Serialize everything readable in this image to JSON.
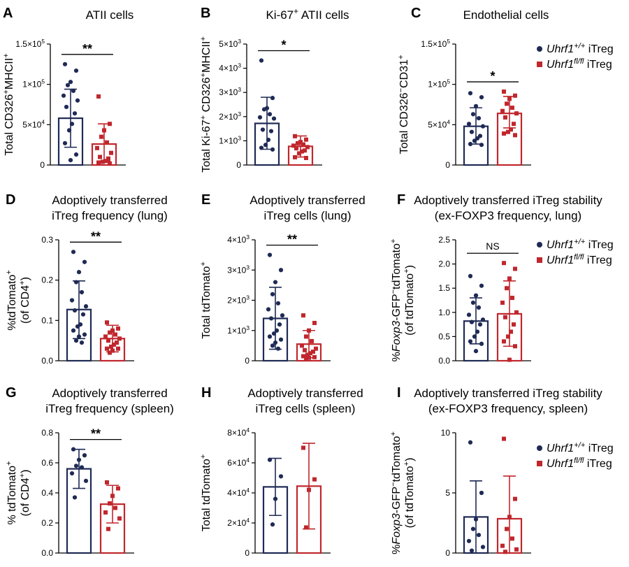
{
  "colors": {
    "wt": "#1f2a55",
    "ko": "#c0272d"
  },
  "legend": {
    "wt": {
      "gene": "Uhrf1",
      "sup": "+/+",
      "suffix": " iTreg"
    },
    "ko": {
      "gene": "Uhrf1",
      "sup": "fl/fl",
      "suffix": " iTreg"
    }
  },
  "chart_data": [
    {
      "id": "A",
      "type": "bar",
      "letter": "A",
      "title": [
        "ATII cells"
      ],
      "ylabel": [
        {
          "t": "Total CD326"
        },
        {
          "t": "+",
          "s": "sup"
        },
        {
          "t": "MHCII"
        },
        {
          "t": "+",
          "s": "sup"
        }
      ],
      "ylim": [
        0,
        150000
      ],
      "ticks": [
        {
          "v": 0,
          "parts": [
            {
              "t": "0"
            }
          ]
        },
        {
          "v": 50000,
          "parts": [
            {
              "t": "5×10"
            },
            {
              "t": "4",
              "s": "sup"
            }
          ]
        },
        {
          "v": 100000,
          "parts": [
            {
              "t": "1×10"
            },
            {
              "t": "5",
              "s": "sup"
            }
          ]
        },
        {
          "v": 150000,
          "parts": [
            {
              "t": "1.5×10"
            },
            {
              "t": "5",
              "s": "sup"
            }
          ]
        }
      ],
      "sig": "**",
      "series": [
        {
          "group": "wt",
          "mean": 58000,
          "err": [
            22000,
            94000
          ],
          "points": [
            125000,
            117000,
            103000,
            99000,
            92000,
            86000,
            80000,
            72000,
            64000,
            51000,
            43000,
            27000,
            13000,
            6000
          ]
        },
        {
          "group": "ko",
          "mean": 26000,
          "err": [
            5000,
            51000
          ],
          "points": [
            85000,
            51000,
            43000,
            35000,
            28000,
            21000,
            15000,
            10000,
            8000,
            5000,
            4000,
            3000,
            2000
          ]
        }
      ]
    },
    {
      "id": "B",
      "type": "bar",
      "letter": "B",
      "title": [
        [
          {
            "t": "Ki-67"
          },
          {
            "t": "+",
            "s": "sup"
          },
          {
            "t": " ATII cells"
          }
        ]
      ],
      "ylabel": [
        {
          "t": "Total Ki-67"
        },
        {
          "t": "+",
          "s": "sup"
        },
        {
          "t": " CD326"
        },
        {
          "t": "+",
          "s": "sup"
        },
        {
          "t": "MHCII"
        },
        {
          "t": "+",
          "s": "sup"
        }
      ],
      "ylim": [
        0,
        5000
      ],
      "ticks": [
        {
          "v": 0,
          "parts": [
            {
              "t": "0"
            }
          ]
        },
        {
          "v": 1000,
          "parts": [
            {
              "t": "1×10"
            },
            {
              "t": "3",
              "s": "sup"
            }
          ]
        },
        {
          "v": 2000,
          "parts": [
            {
              "t": "2×10"
            },
            {
              "t": "3",
              "s": "sup"
            }
          ]
        },
        {
          "v": 3000,
          "parts": [
            {
              "t": "3×10"
            },
            {
              "t": "3",
              "s": "sup"
            }
          ]
        },
        {
          "v": 4000,
          "parts": [
            {
              "t": "4×10"
            },
            {
              "t": "3",
              "s": "sup"
            }
          ]
        },
        {
          "v": 5000,
          "parts": [
            {
              "t": "5×10"
            },
            {
              "t": "3",
              "s": "sup"
            }
          ]
        }
      ],
      "sig": "*",
      "series": [
        {
          "group": "wt",
          "mean": 1720,
          "err": [
            650,
            2800
          ],
          "points": [
            4320,
            2770,
            2350,
            2300,
            2100,
            1970,
            1920,
            1460,
            1400,
            1040,
            830,
            710,
            640
          ]
        },
        {
          "group": "ko",
          "mean": 770,
          "err": [
            330,
            1200
          ],
          "points": [
            1190,
            1050,
            950,
            900,
            850,
            800,
            740,
            690,
            600,
            560,
            480,
            320,
            290
          ]
        }
      ]
    },
    {
      "id": "C",
      "type": "bar",
      "letter": "C",
      "title": [
        "Endothelial cells"
      ],
      "ylabel": [
        {
          "t": "Total CD326"
        },
        {
          "t": "−",
          "s": "sup"
        },
        {
          "t": "CD31"
        },
        {
          "t": "+",
          "s": "sup"
        }
      ],
      "ylim": [
        0,
        150000
      ],
      "ticks": [
        {
          "v": 0,
          "parts": [
            {
              "t": "0"
            }
          ]
        },
        {
          "v": 50000,
          "parts": [
            {
              "t": "5×10"
            },
            {
              "t": "4",
              "s": "sup"
            }
          ]
        },
        {
          "v": 100000,
          "parts": [
            {
              "t": "1×10"
            },
            {
              "t": "5",
              "s": "sup"
            }
          ]
        },
        {
          "v": 150000,
          "parts": [
            {
              "t": "1.5×10"
            },
            {
              "t": "5",
              "s": "sup"
            }
          ]
        }
      ],
      "sig": "*",
      "series": [
        {
          "group": "wt",
          "mean": 48000,
          "err": [
            26000,
            71000
          ],
          "points": [
            89000,
            84000,
            73000,
            63000,
            58000,
            51000,
            48000,
            41000,
            36000,
            33000,
            30000,
            26000,
            25000
          ]
        },
        {
          "group": "ko",
          "mean": 64000,
          "err": [
            46000,
            85000
          ],
          "points": [
            91000,
            86000,
            82000,
            76000,
            71000,
            67000,
            64000,
            59000,
            51000,
            44000,
            41000,
            39000,
            37000
          ]
        }
      ]
    },
    {
      "id": "D",
      "type": "bar",
      "letter": "D",
      "title": [
        "Adoptively transferred",
        "iTreg frequency (lung)"
      ],
      "ylabel2": [
        [
          {
            "t": "%tdTomato"
          },
          {
            "t": "+",
            "s": "sup"
          }
        ],
        [
          {
            "t": "(of CD4"
          },
          {
            "t": "+",
            "s": "sup"
          },
          {
            "t": ")"
          }
        ]
      ],
      "ylim": [
        0,
        0.3
      ],
      "ticks": [
        {
          "v": 0,
          "parts": [
            {
              "t": "0.0"
            }
          ]
        },
        {
          "v": 0.1,
          "parts": [
            {
              "t": "0.1"
            }
          ]
        },
        {
          "v": 0.2,
          "parts": [
            {
              "t": "0.2"
            }
          ]
        },
        {
          "v": 0.3,
          "parts": [
            {
              "t": "0.3"
            }
          ]
        }
      ],
      "sig": "**",
      "series": [
        {
          "group": "wt",
          "mean": 0.127,
          "err": [
            0.055,
            0.198
          ],
          "points": [
            0.27,
            0.245,
            0.22,
            0.195,
            0.17,
            0.15,
            0.135,
            0.125,
            0.115,
            0.09,
            0.085,
            0.075,
            0.065,
            0.06,
            0.05,
            0.045
          ]
        },
        {
          "group": "ko",
          "mean": 0.055,
          "err": [
            0.022,
            0.088
          ],
          "points": [
            0.095,
            0.08,
            0.075,
            0.07,
            0.065,
            0.06,
            0.055,
            0.05,
            0.045,
            0.04,
            0.035,
            0.03,
            0.03,
            0.025,
            0.02
          ]
        }
      ]
    },
    {
      "id": "E",
      "type": "bar",
      "letter": "E",
      "title": [
        "Adoptively transferred",
        "iTreg cells (lung)"
      ],
      "ylabel": [
        {
          "t": "Total tdTomato"
        },
        {
          "t": "+",
          "s": "sup"
        }
      ],
      "ylim": [
        0,
        4000
      ],
      "ticks": [
        {
          "v": 0,
          "parts": [
            {
              "t": "0"
            }
          ]
        },
        {
          "v": 1000,
          "parts": [
            {
              "t": "1×10"
            },
            {
              "t": "3",
              "s": "sup"
            }
          ]
        },
        {
          "v": 2000,
          "parts": [
            {
              "t": "2×10"
            },
            {
              "t": "3",
              "s": "sup"
            }
          ]
        },
        {
          "v": 3000,
          "parts": [
            {
              "t": "3×10"
            },
            {
              "t": "3",
              "s": "sup"
            }
          ]
        },
        {
          "v": 4000,
          "parts": [
            {
              "t": "4×10"
            },
            {
              "t": "3",
              "s": "sup"
            }
          ]
        }
      ],
      "sig": "**",
      "series": [
        {
          "group": "wt",
          "mean": 1400,
          "err": [
            380,
            2430
          ],
          "points": [
            3500,
            3000,
            2600,
            2200,
            1900,
            1700,
            1500,
            1400,
            1200,
            1000,
            900,
            800,
            700,
            600,
            500,
            400
          ]
        },
        {
          "group": "ko",
          "mean": 550,
          "err": [
            100,
            1000
          ],
          "points": [
            1500,
            1250,
            1000,
            800,
            650,
            500,
            400,
            350,
            300,
            250,
            200,
            150,
            120,
            100,
            90
          ]
        }
      ]
    },
    {
      "id": "F",
      "type": "bar",
      "letter": "F",
      "title": [
        "Adoptively transferred iTreg stability",
        "(ex-FOXP3 frequency, lung)"
      ],
      "ylabel2": [
        [
          {
            "t": "%"
          },
          {
            "t": "Foxp3",
            "s": "it"
          },
          {
            "t": "-GFP"
          },
          {
            "t": "−",
            "s": "sup"
          },
          {
            "t": "tdTomato"
          },
          {
            "t": "+",
            "s": "sup"
          }
        ],
        [
          {
            "t": "(of tdTomato"
          },
          {
            "t": "+",
            "s": "sup"
          },
          {
            "t": ")"
          }
        ]
      ],
      "ylim": [
        0,
        2.5
      ],
      "ticks": [
        {
          "v": 0,
          "parts": [
            {
              "t": "0.0"
            }
          ]
        },
        {
          "v": 0.5,
          "parts": [
            {
              "t": "0.5"
            }
          ]
        },
        {
          "v": 1.0,
          "parts": [
            {
              "t": "1.0"
            }
          ]
        },
        {
          "v": 1.5,
          "parts": [
            {
              "t": "1.5"
            }
          ]
        },
        {
          "v": 2.0,
          "parts": [
            {
              "t": "2.0"
            }
          ]
        },
        {
          "v": 2.5,
          "parts": [
            {
              "t": "2.5"
            }
          ]
        }
      ],
      "sig": "NS",
      "series": [
        {
          "group": "wt",
          "mean": 0.82,
          "err": [
            0.35,
            1.3
          ],
          "points": [
            1.75,
            1.55,
            1.35,
            1.2,
            1.1,
            0.95,
            0.85,
            0.8,
            0.75,
            0.6,
            0.5,
            0.4,
            0.35,
            0.2
          ]
        },
        {
          "group": "ko",
          "mean": 0.97,
          "err": [
            0.3,
            1.65
          ],
          "points": [
            2.02,
            1.9,
            1.7,
            1.5,
            1.3,
            1.2,
            1.0,
            0.9,
            0.75,
            0.6,
            0.5,
            0.4,
            0.3,
            0.02
          ]
        }
      ]
    },
    {
      "id": "G",
      "type": "bar",
      "letter": "G",
      "title": [
        "Adoptively transferred",
        "iTreg frequency (spleen)"
      ],
      "ylabel2": [
        [
          {
            "t": "% tdTomato"
          },
          {
            "t": "+",
            "s": "sup"
          }
        ],
        [
          {
            "t": "(of CD4"
          },
          {
            "t": "+",
            "s": "sup"
          },
          {
            "t": ")"
          }
        ]
      ],
      "ylim": [
        0,
        0.8
      ],
      "ticks": [
        {
          "v": 0,
          "parts": [
            {
              "t": "0.0"
            }
          ]
        },
        {
          "v": 0.2,
          "parts": [
            {
              "t": "0.2"
            }
          ]
        },
        {
          "v": 0.4,
          "parts": [
            {
              "t": "0.4"
            }
          ]
        },
        {
          "v": 0.6,
          "parts": [
            {
              "t": "0.6"
            }
          ]
        },
        {
          "v": 0.8,
          "parts": [
            {
              "t": "0.8"
            }
          ]
        }
      ],
      "sig": "**",
      "series": [
        {
          "group": "wt",
          "mean": 0.56,
          "err": [
            0.43,
            0.69
          ],
          "points": [
            0.69,
            0.65,
            0.62,
            0.58,
            0.57,
            0.53,
            0.48,
            0.37
          ]
        },
        {
          "group": "ko",
          "mean": 0.325,
          "err": [
            0.2,
            0.45
          ],
          "points": [
            0.47,
            0.43,
            0.38,
            0.33,
            0.3,
            0.27,
            0.23,
            0.16
          ]
        }
      ]
    },
    {
      "id": "H",
      "type": "bar",
      "letter": "H",
      "title": [
        "Adoptively transferred",
        "iTreg cells (spleen)"
      ],
      "ylabel": [
        {
          "t": "Total tdTomato"
        },
        {
          "t": "+",
          "s": "sup"
        }
      ],
      "ylim": [
        0,
        80000
      ],
      "ticks": [
        {
          "v": 0,
          "parts": [
            {
              "t": "0"
            }
          ]
        },
        {
          "v": 20000,
          "parts": [
            {
              "t": "2×10"
            },
            {
              "t": "4",
              "s": "sup"
            }
          ]
        },
        {
          "v": 40000,
          "parts": [
            {
              "t": "4×10"
            },
            {
              "t": "4",
              "s": "sup"
            }
          ]
        },
        {
          "v": 60000,
          "parts": [
            {
              "t": "6×10"
            },
            {
              "t": "4",
              "s": "sup"
            }
          ]
        },
        {
          "v": 80000,
          "parts": [
            {
              "t": "8×10"
            },
            {
              "t": "4",
              "s": "sup"
            }
          ]
        }
      ],
      "sig": "",
      "series": [
        {
          "group": "wt",
          "mean": 44000,
          "err": [
            25000,
            63000
          ],
          "points": [
            62000,
            51000,
            36000,
            19000
          ]
        },
        {
          "group": "ko",
          "mean": 44500,
          "err": [
            16000,
            73000
          ],
          "points": [
            70000,
            49000,
            42000,
            17000
          ]
        }
      ]
    },
    {
      "id": "I",
      "type": "bar",
      "letter": "I",
      "title": [
        "Adoptively transferred iTreg stability",
        "(ex-FOXP3 frequency, spleen)"
      ],
      "ylabel2": [
        [
          {
            "t": "%"
          },
          {
            "t": "Foxp3",
            "s": "it"
          },
          {
            "t": "-GFP"
          },
          {
            "t": "−",
            "s": "sup"
          },
          {
            "t": "tdTomato"
          },
          {
            "t": "+",
            "s": "sup"
          }
        ],
        [
          {
            "t": "(of tdTomato"
          },
          {
            "t": "+",
            "s": "sup"
          },
          {
            "t": ")"
          }
        ]
      ],
      "ylim": [
        0,
        10
      ],
      "ticks": [
        {
          "v": 0,
          "parts": [
            {
              "t": "0"
            }
          ]
        },
        {
          "v": 5,
          "parts": [
            {
              "t": "5"
            }
          ]
        },
        {
          "v": 10,
          "parts": [
            {
              "t": "10"
            }
          ]
        }
      ],
      "sig": "",
      "series": [
        {
          "group": "wt",
          "mean": 3.0,
          "err": [
            0,
            6.0
          ],
          "points": [
            9.2,
            5.0,
            2.8,
            2.0,
            1.5,
            1.0,
            0.5,
            0.2
          ]
        },
        {
          "group": "ko",
          "mean": 2.85,
          "err": [
            0,
            6.4
          ],
          "points": [
            9.5,
            4.5,
            3.0,
            2.0,
            1.2,
            0.6,
            0.3,
            0.1
          ]
        }
      ]
    }
  ]
}
